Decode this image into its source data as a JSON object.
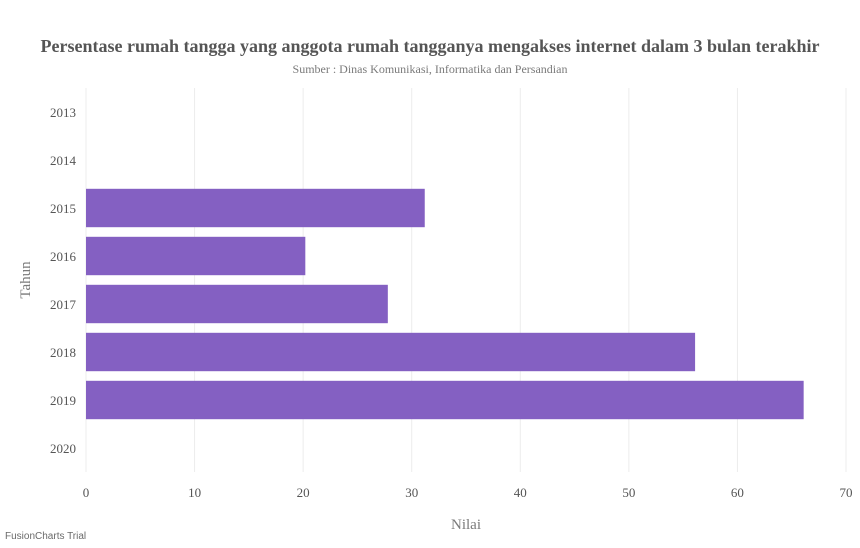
{
  "chart_data": {
    "type": "bar",
    "orientation": "horizontal",
    "title": "Persentase rumah tangga yang anggota rumah tangganya mengakses internet dalam 3 bulan terakhir",
    "subtitle": "Sumber : Dinas Komunikasi, Informatika dan Persandian",
    "xlabel": "Nilai",
    "ylabel": "Tahun",
    "categories": [
      "2013",
      "2014",
      "2015",
      "2016",
      "2017",
      "2018",
      "2019",
      "2020"
    ],
    "values": [
      null,
      null,
      31.2,
      20.2,
      27.8,
      56.1,
      66.1,
      null
    ],
    "xlim": [
      0,
      70
    ],
    "xticks": [
      0,
      10,
      20,
      30,
      40,
      50,
      60,
      70
    ],
    "grid": true,
    "bar_color": "#8460c2"
  },
  "credit": "FusionCharts Trial"
}
